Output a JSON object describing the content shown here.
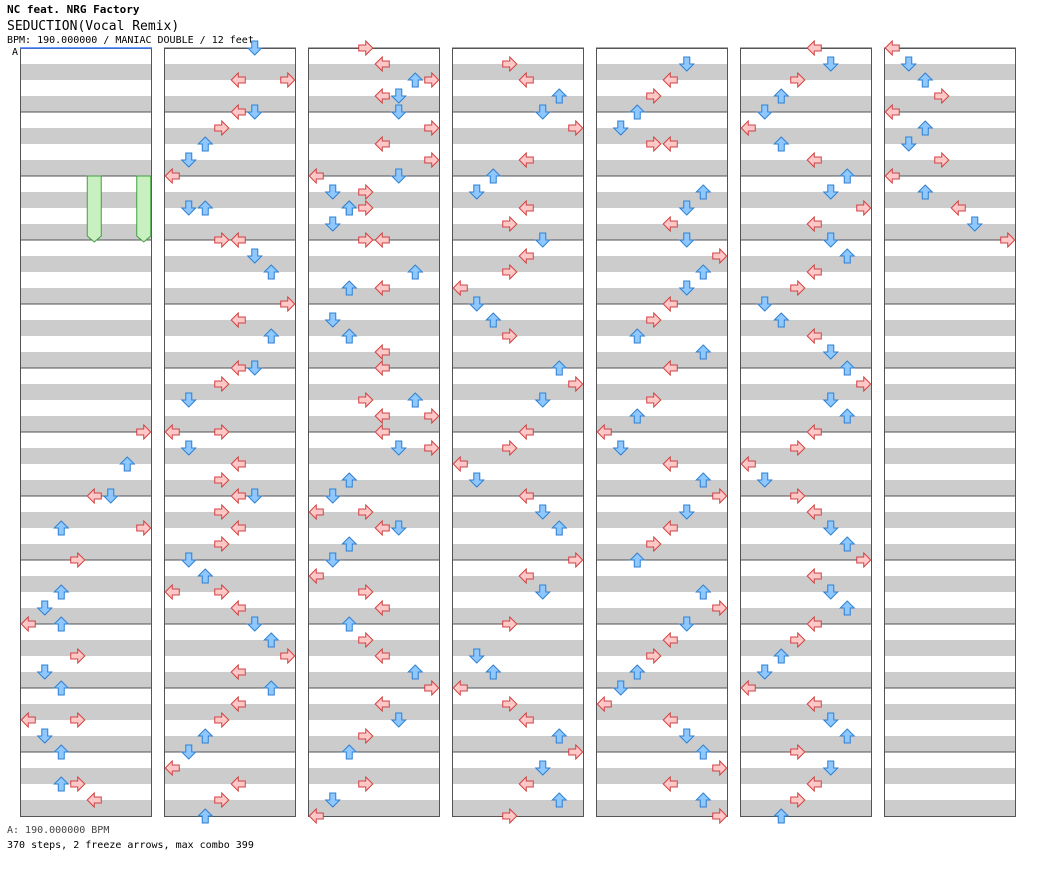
{
  "header": {
    "artist": "NC feat. NRG Factory",
    "title": "SEDUCTION(Vocal Remix)",
    "info": "BPM: 190.000000 / MANIAC DOUBLE / 12 feet",
    "bpm_marker": "A"
  },
  "footer": {
    "bpm_line": "A: 190.000000 BPM",
    "stats": "370 steps, 2 freeze arrows, max combo 399"
  },
  "colors": {
    "red_fill": "#ffc8c8",
    "red_stroke": "#d04040",
    "blue_fill": "#8ec8ff",
    "blue_stroke": "#2f7fd0",
    "freeze_fill": "#c8f0c0",
    "freeze_stroke": "#40a040",
    "row_gray": "#cccccc"
  },
  "chart_data": {
    "type": "step-chart",
    "mode": "MANIAC DOUBLE",
    "bpm": 190,
    "lanes": [
      "L1",
      "D1",
      "U1",
      "R1",
      "L2",
      "D2",
      "U2",
      "R2"
    ],
    "columns": 7,
    "measures_per_column": 12,
    "total_steps": 370,
    "freeze_arrows": 2,
    "max_combo": 399,
    "notes": [
      [
        [
          7,
          6.0
        ],
        [
          6,
          6.5
        ],
        [
          4,
          7.0
        ],
        [
          5,
          7.0
        ],
        [
          7,
          7.5
        ],
        [
          2,
          7.5
        ],
        [
          3,
          8.0
        ],
        [
          2,
          8.5
        ],
        [
          1,
          8.75
        ],
        [
          0,
          9.0
        ],
        [
          2,
          9.0
        ],
        [
          3,
          9.5
        ],
        [
          1,
          9.75
        ],
        [
          2,
          10.0
        ],
        [
          3,
          10.5
        ],
        [
          0,
          10.5
        ],
        [
          1,
          10.75
        ],
        [
          2,
          11.0
        ],
        [
          3,
          11.5
        ],
        [
          2,
          11.5
        ],
        [
          4,
          11.75
        ]
      ],
      [
        [
          5,
          0.0
        ],
        [
          4,
          0.5
        ],
        [
          7,
          0.5
        ],
        [
          5,
          1.0
        ],
        [
          4,
          1.0
        ],
        [
          3,
          1.25
        ],
        [
          2,
          1.5
        ],
        [
          1,
          1.75
        ],
        [
          0,
          2.0
        ],
        [
          2,
          2.5
        ],
        [
          1,
          2.5
        ],
        [
          3,
          3.0
        ],
        [
          4,
          3.0
        ],
        [
          5,
          3.25
        ],
        [
          6,
          3.5
        ],
        [
          7,
          4.0
        ],
        [
          4,
          4.25
        ],
        [
          6,
          4.5
        ],
        [
          5,
          5.0
        ],
        [
          4,
          5.0
        ],
        [
          3,
          5.25
        ],
        [
          1,
          5.5
        ],
        [
          0,
          6.0
        ],
        [
          3,
          6.0
        ],
        [
          1,
          6.25
        ],
        [
          4,
          6.5
        ],
        [
          3,
          6.75
        ],
        [
          4,
          7.0
        ],
        [
          5,
          7.0
        ],
        [
          3,
          7.25
        ],
        [
          4,
          7.5
        ],
        [
          3,
          7.75
        ],
        [
          1,
          8.0
        ],
        [
          2,
          8.25
        ],
        [
          0,
          8.5
        ],
        [
          3,
          8.5
        ],
        [
          4,
          8.75
        ],
        [
          5,
          9.0
        ],
        [
          6,
          9.25
        ],
        [
          7,
          9.5
        ],
        [
          4,
          9.75
        ],
        [
          6,
          10.0
        ],
        [
          4,
          10.25
        ],
        [
          3,
          10.5
        ],
        [
          2,
          10.75
        ],
        [
          1,
          11.0
        ],
        [
          0,
          11.25
        ],
        [
          4,
          11.5
        ],
        [
          3,
          11.75
        ],
        [
          2,
          12.0
        ]
      ],
      [
        [
          3,
          0.0
        ],
        [
          4,
          0.25
        ],
        [
          6,
          0.5
        ],
        [
          7,
          0.5
        ],
        [
          5,
          0.75
        ],
        [
          4,
          0.75
        ],
        [
          5,
          1.0
        ],
        [
          7,
          1.25
        ],
        [
          4,
          1.5
        ],
        [
          7,
          1.75
        ],
        [
          5,
          2.0
        ],
        [
          3,
          2.25
        ],
        [
          2,
          2.5
        ],
        [
          0,
          2.0
        ],
        [
          1,
          2.25
        ],
        [
          2,
          2.5
        ],
        [
          3,
          2.5
        ],
        [
          1,
          2.75
        ],
        [
          4,
          3.0
        ],
        [
          3,
          3.0
        ],
        [
          6,
          3.5
        ],
        [
          4,
          3.75
        ],
        [
          2,
          3.75
        ],
        [
          1,
          4.25
        ],
        [
          2,
          4.5
        ],
        [
          4,
          4.75
        ],
        [
          4,
          5.0
        ],
        [
          3,
          5.5
        ],
        [
          6,
          5.5
        ],
        [
          4,
          5.75
        ],
        [
          7,
          5.75
        ],
        [
          4,
          6.0
        ],
        [
          5,
          6.25
        ],
        [
          7,
          6.25
        ],
        [
          2,
          6.75
        ],
        [
          1,
          7.0
        ],
        [
          0,
          7.25
        ],
        [
          3,
          7.25
        ],
        [
          4,
          7.5
        ],
        [
          5,
          7.5
        ],
        [
          2,
          7.75
        ],
        [
          1,
          8.0
        ],
        [
          0,
          8.25
        ],
        [
          3,
          8.5
        ],
        [
          4,
          8.75
        ],
        [
          2,
          9.0
        ],
        [
          3,
          9.25
        ],
        [
          4,
          9.5
        ],
        [
          6,
          9.75
        ],
        [
          7,
          10.0
        ],
        [
          4,
          10.25
        ],
        [
          5,
          10.5
        ],
        [
          3,
          10.75
        ],
        [
          2,
          11.0
        ],
        [
          3,
          11.5
        ],
        [
          1,
          11.75
        ],
        [
          0,
          12.0
        ]
      ],
      [
        [
          3,
          0.25
        ],
        [
          4,
          0.5
        ],
        [
          6,
          0.75
        ],
        [
          5,
          1.0
        ],
        [
          7,
          1.25
        ],
        [
          4,
          1.75
        ],
        [
          2,
          2.0
        ],
        [
          1,
          2.25
        ],
        [
          4,
          2.5
        ],
        [
          3,
          2.75
        ],
        [
          5,
          3.0
        ],
        [
          4,
          3.25
        ],
        [
          3,
          3.5
        ],
        [
          0,
          3.75
        ],
        [
          1,
          4.0
        ],
        [
          2,
          4.25
        ],
        [
          3,
          4.5
        ],
        [
          6,
          5.0
        ],
        [
          7,
          5.25
        ],
        [
          5,
          5.5
        ],
        [
          4,
          6.0
        ],
        [
          3,
          6.25
        ],
        [
          0,
          6.5
        ],
        [
          1,
          6.75
        ],
        [
          4,
          7.0
        ],
        [
          5,
          7.25
        ],
        [
          6,
          7.5
        ],
        [
          7,
          8.0
        ],
        [
          4,
          8.25
        ],
        [
          5,
          8.5
        ],
        [
          3,
          9.0
        ],
        [
          1,
          9.5
        ],
        [
          2,
          9.75
        ],
        [
          0,
          10.0
        ],
        [
          3,
          10.25
        ],
        [
          4,
          10.5
        ],
        [
          6,
          10.75
        ],
        [
          7,
          11.0
        ],
        [
          5,
          11.25
        ],
        [
          4,
          11.5
        ],
        [
          6,
          11.75
        ],
        [
          3,
          12.0
        ]
      ],
      [
        [
          5,
          0.25
        ],
        [
          4,
          0.5
        ],
        [
          3,
          0.75
        ],
        [
          2,
          1.0
        ],
        [
          1,
          1.25
        ],
        [
          3,
          1.5
        ],
        [
          4,
          1.5
        ],
        [
          6,
          2.25
        ],
        [
          5,
          2.5
        ],
        [
          4,
          2.75
        ],
        [
          5,
          3.0
        ],
        [
          7,
          3.25
        ],
        [
          6,
          3.5
        ],
        [
          5,
          3.75
        ],
        [
          4,
          4.0
        ],
        [
          3,
          4.25
        ],
        [
          2,
          4.5
        ],
        [
          6,
          4.75
        ],
        [
          4,
          5.0
        ],
        [
          3,
          5.5
        ],
        [
          2,
          5.75
        ],
        [
          0,
          6.0
        ],
        [
          1,
          6.25
        ],
        [
          4,
          6.5
        ],
        [
          6,
          6.75
        ],
        [
          7,
          7.0
        ],
        [
          5,
          7.25
        ],
        [
          4,
          7.5
        ],
        [
          3,
          7.75
        ],
        [
          2,
          8.0
        ],
        [
          6,
          8.5
        ],
        [
          7,
          8.75
        ],
        [
          5,
          9.0
        ],
        [
          4,
          9.25
        ],
        [
          3,
          9.5
        ],
        [
          2,
          9.75
        ],
        [
          1,
          10.0
        ],
        [
          0,
          10.25
        ],
        [
          4,
          10.5
        ],
        [
          5,
          10.75
        ],
        [
          6,
          11.0
        ],
        [
          7,
          11.25
        ],
        [
          4,
          11.5
        ],
        [
          6,
          11.75
        ],
        [
          7,
          12.0
        ]
      ],
      [
        [
          4,
          0.0
        ],
        [
          5,
          0.25
        ],
        [
          3,
          0.5
        ],
        [
          2,
          0.75
        ],
        [
          1,
          1.0
        ],
        [
          0,
          1.25
        ],
        [
          2,
          1.5
        ],
        [
          4,
          1.75
        ],
        [
          6,
          2.0
        ],
        [
          5,
          2.25
        ],
        [
          7,
          2.5
        ],
        [
          4,
          2.75
        ],
        [
          5,
          3.0
        ],
        [
          6,
          3.25
        ],
        [
          4,
          3.5
        ],
        [
          3,
          3.75
        ],
        [
          1,
          4.0
        ],
        [
          2,
          4.25
        ],
        [
          4,
          4.5
        ],
        [
          5,
          4.75
        ],
        [
          6,
          5.0
        ],
        [
          7,
          5.25
        ],
        [
          5,
          5.5
        ],
        [
          6,
          5.75
        ],
        [
          4,
          6.0
        ],
        [
          3,
          6.25
        ],
        [
          0,
          6.5
        ],
        [
          1,
          6.75
        ],
        [
          3,
          7.0
        ],
        [
          4,
          7.25
        ],
        [
          5,
          7.5
        ],
        [
          6,
          7.75
        ],
        [
          7,
          8.0
        ],
        [
          4,
          8.25
        ],
        [
          5,
          8.5
        ],
        [
          6,
          8.75
        ],
        [
          4,
          9.0
        ],
        [
          3,
          9.25
        ],
        [
          2,
          9.5
        ],
        [
          1,
          9.75
        ],
        [
          0,
          10.0
        ],
        [
          4,
          10.25
        ],
        [
          5,
          10.5
        ],
        [
          6,
          10.75
        ],
        [
          3,
          11.0
        ],
        [
          5,
          11.25
        ],
        [
          4,
          11.5
        ],
        [
          3,
          11.75
        ],
        [
          2,
          12.0
        ]
      ],
      [
        [
          0,
          0.0
        ],
        [
          1,
          0.25
        ],
        [
          2,
          0.5
        ],
        [
          3,
          0.75
        ],
        [
          0,
          1.0
        ],
        [
          2,
          1.25
        ],
        [
          1,
          1.5
        ],
        [
          3,
          1.75
        ],
        [
          0,
          2.0
        ],
        [
          2,
          2.25
        ],
        [
          4,
          2.5
        ],
        [
          5,
          2.75
        ],
        [
          7,
          3.0
        ]
      ]
    ],
    "freezes": [
      [
        [
          4,
          2.0,
          3.0
        ],
        [
          7,
          2.0,
          3.0
        ]
      ]
    ]
  }
}
